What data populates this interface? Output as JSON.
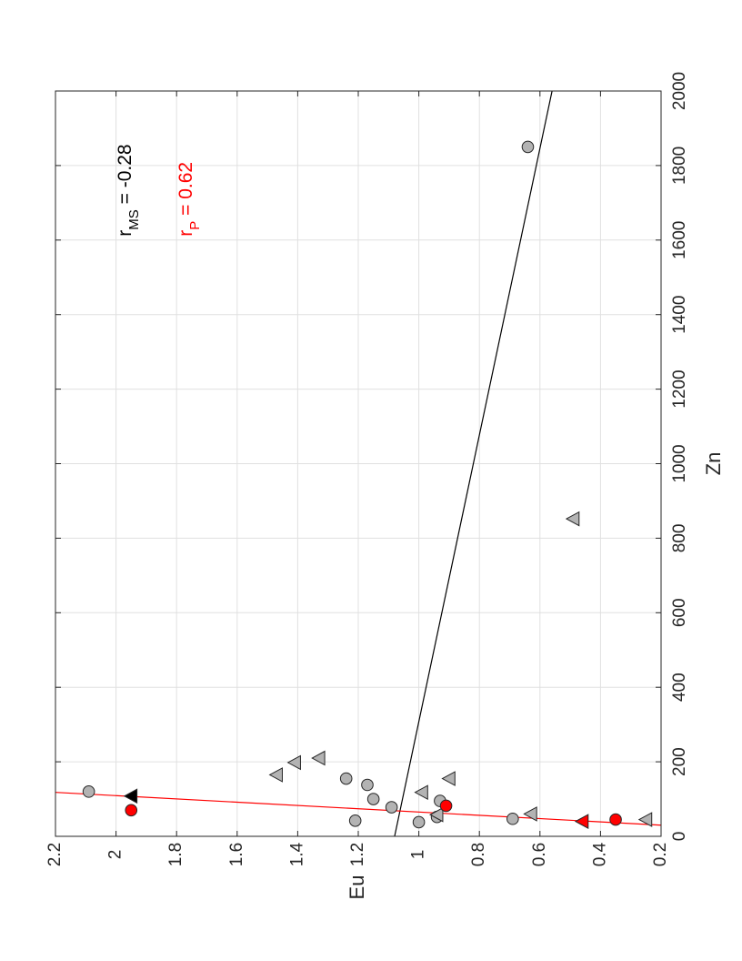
{
  "chart_data": {
    "type": "scatter",
    "orientation": "rotated 90 degrees counter-clockwise",
    "title": "",
    "xlabel": "Zn",
    "ylabel": "Eu",
    "xlim": [
      0,
      2000
    ],
    "ylim": [
      0.2,
      2.2
    ],
    "x_ticks": [
      "0",
      "200",
      "400",
      "600",
      "800",
      "1000",
      "1200",
      "1400",
      "1600",
      "1800",
      "2000"
    ],
    "y_ticks": [
      "0.2",
      "0.4",
      "0.6",
      "0.8",
      "1",
      "1.2",
      "1.4",
      "1.6",
      "1.8",
      "2",
      "2.2"
    ],
    "grid": true,
    "series": [
      {
        "marker": "circle",
        "color": "#b3b3b3",
        "points": [
          {
            "x": 120,
            "y": 2.09
          },
          {
            "x": 155,
            "y": 1.24
          },
          {
            "x": 42,
            "y": 1.21
          },
          {
            "x": 138,
            "y": 1.17
          },
          {
            "x": 100,
            "y": 1.15
          },
          {
            "x": 78,
            "y": 1.09
          },
          {
            "x": 38,
            "y": 1.0
          },
          {
            "x": 95,
            "y": 0.93
          },
          {
            "x": 52,
            "y": 0.94
          },
          {
            "x": 47,
            "y": 0.69
          },
          {
            "x": 1850,
            "y": 0.64
          }
        ]
      },
      {
        "marker": "triangle",
        "color": "#b3b3b3",
        "points": [
          {
            "x": 165,
            "y": 1.47
          },
          {
            "x": 198,
            "y": 1.41
          },
          {
            "x": 210,
            "y": 1.33
          },
          {
            "x": 118,
            "y": 0.99
          },
          {
            "x": 155,
            "y": 0.9
          },
          {
            "x": 58,
            "y": 0.94
          },
          {
            "x": 60,
            "y": 0.63
          },
          {
            "x": 852,
            "y": 0.49
          },
          {
            "x": 45,
            "y": 0.25
          }
        ]
      },
      {
        "marker": "circle",
        "color": "#ff0000",
        "points": [
          {
            "x": 70,
            "y": 1.95
          },
          {
            "x": 82,
            "y": 0.91
          },
          {
            "x": 45,
            "y": 0.35
          }
        ]
      },
      {
        "marker": "triangle",
        "color": "#ff0000",
        "points": [
          {
            "x": 40,
            "y": 0.46
          }
        ]
      },
      {
        "marker": "triangle",
        "color": "#000000",
        "points": [
          {
            "x": 108,
            "y": 1.95
          }
        ]
      }
    ],
    "fit_lines": [
      {
        "color": "#000000",
        "from": {
          "x": 0,
          "y": 1.08
        },
        "to": {
          "x": 2000,
          "y": 0.56
        }
      },
      {
        "color": "#ff0000",
        "from": {
          "x": 30,
          "y": 0.2
        },
        "to": {
          "x": 118,
          "y": 2.2
        }
      }
    ],
    "annotations": [
      {
        "base": "r",
        "sub": "MS",
        "rest": " = -0.28",
        "color": "#000000",
        "x": 1610,
        "y": 1.95
      },
      {
        "base": "r",
        "sub": "P",
        "rest": " = 0.62",
        "color": "#ff0000",
        "x": 1610,
        "y": 1.75
      }
    ]
  }
}
